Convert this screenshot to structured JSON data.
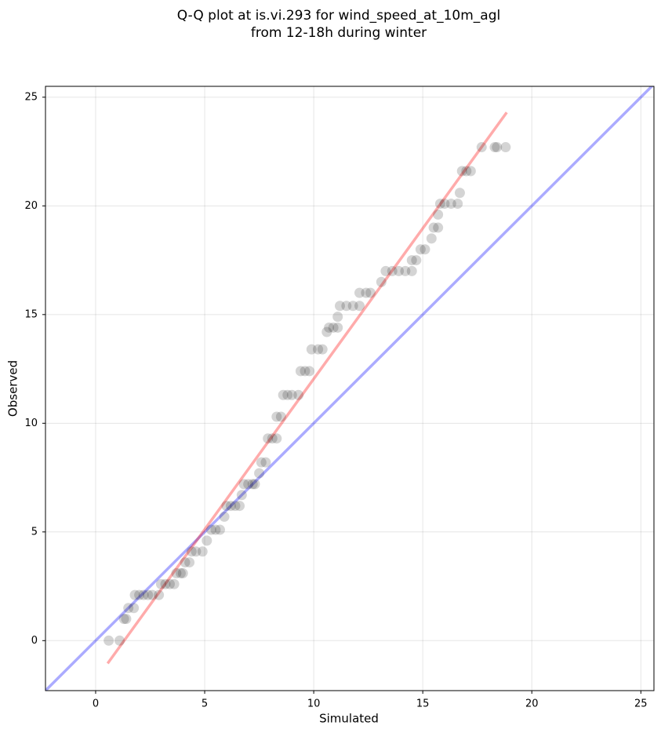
{
  "chart_data": {
    "type": "scatter",
    "title_lines": [
      "Q-Q plot at is.vi.293 for wind_speed_at_10m_agl",
      "from 12-18h during winter"
    ],
    "xlabel": "Simulated",
    "ylabel": "Observed",
    "xlim": [
      -2.3,
      25.6
    ],
    "ylim": [
      -2.3,
      25.5
    ],
    "xticks": [
      0,
      5,
      10,
      15,
      20,
      25
    ],
    "yticks": [
      0,
      5,
      10,
      15,
      20,
      25
    ],
    "grid": true,
    "marker_color": "#000000",
    "marker_alpha": 0.17,
    "x": [
      0.6,
      1.1,
      1.3,
      1.4,
      1.5,
      1.75,
      1.8,
      2.0,
      2.2,
      2.4,
      2.6,
      2.9,
      3.0,
      3.2,
      3.4,
      3.6,
      3.7,
      3.9,
      4.0,
      4.1,
      4.3,
      4.4,
      4.6,
      4.9,
      5.1,
      5.3,
      5.5,
      5.7,
      5.9,
      6.0,
      6.2,
      6.4,
      6.6,
      6.7,
      6.8,
      7.0,
      7.2,
      7.3,
      7.5,
      7.6,
      7.8,
      7.9,
      8.1,
      8.3,
      8.3,
      8.5,
      8.6,
      8.8,
      9.0,
      9.3,
      9.4,
      9.6,
      9.8,
      9.9,
      10.2,
      10.4,
      10.6,
      10.7,
      10.9,
      11.1,
      11.1,
      11.2,
      11.5,
      11.8,
      12.1,
      12.1,
      12.4,
      12.6,
      13.1,
      13.3,
      13.6,
      13.9,
      14.2,
      14.5,
      14.5,
      14.7,
      14.9,
      15.1,
      15.4,
      15.5,
      15.7,
      15.7,
      15.8,
      16.0,
      16.3,
      16.6,
      16.7,
      16.8,
      17.0,
      17.2,
      17.7,
      18.3,
      18.4,
      18.8
    ],
    "y": [
      0,
      0,
      1.0,
      1.0,
      1.5,
      1.5,
      2.1,
      2.1,
      2.1,
      2.1,
      2.1,
      2.1,
      2.6,
      2.6,
      2.6,
      2.6,
      3.1,
      3.1,
      3.1,
      3.6,
      3.6,
      4.1,
      4.1,
      4.1,
      4.6,
      5.1,
      5.1,
      5.1,
      5.7,
      6.2,
      6.2,
      6.2,
      6.2,
      6.7,
      7.2,
      7.2,
      7.2,
      7.2,
      7.7,
      8.2,
      8.2,
      9.3,
      9.3,
      9.3,
      10.3,
      10.3,
      11.3,
      11.3,
      11.3,
      11.3,
      12.4,
      12.4,
      12.4,
      13.4,
      13.4,
      13.4,
      14.2,
      14.4,
      14.4,
      14.4,
      14.9,
      15.4,
      15.4,
      15.4,
      15.4,
      16.0,
      16.0,
      16.0,
      16.5,
      17.0,
      17.0,
      17.0,
      17.0,
      17.0,
      17.5,
      17.5,
      18.0,
      18.0,
      18.5,
      19.0,
      19.0,
      19.6,
      20.1,
      20.1,
      20.1,
      20.1,
      20.6,
      21.6,
      21.6,
      21.6,
      22.7,
      22.7,
      22.7,
      22.7
    ],
    "lines": [
      {
        "x": [
          -2.3,
          25.6
        ],
        "y": [
          -2.3,
          25.6
        ],
        "color": "#0000ff",
        "alpha": 0.33
      },
      {
        "x": [
          0.55,
          18.85
        ],
        "y": [
          -1.05,
          24.3
        ],
        "color": "#ff0000",
        "alpha": 0.33
      }
    ]
  }
}
